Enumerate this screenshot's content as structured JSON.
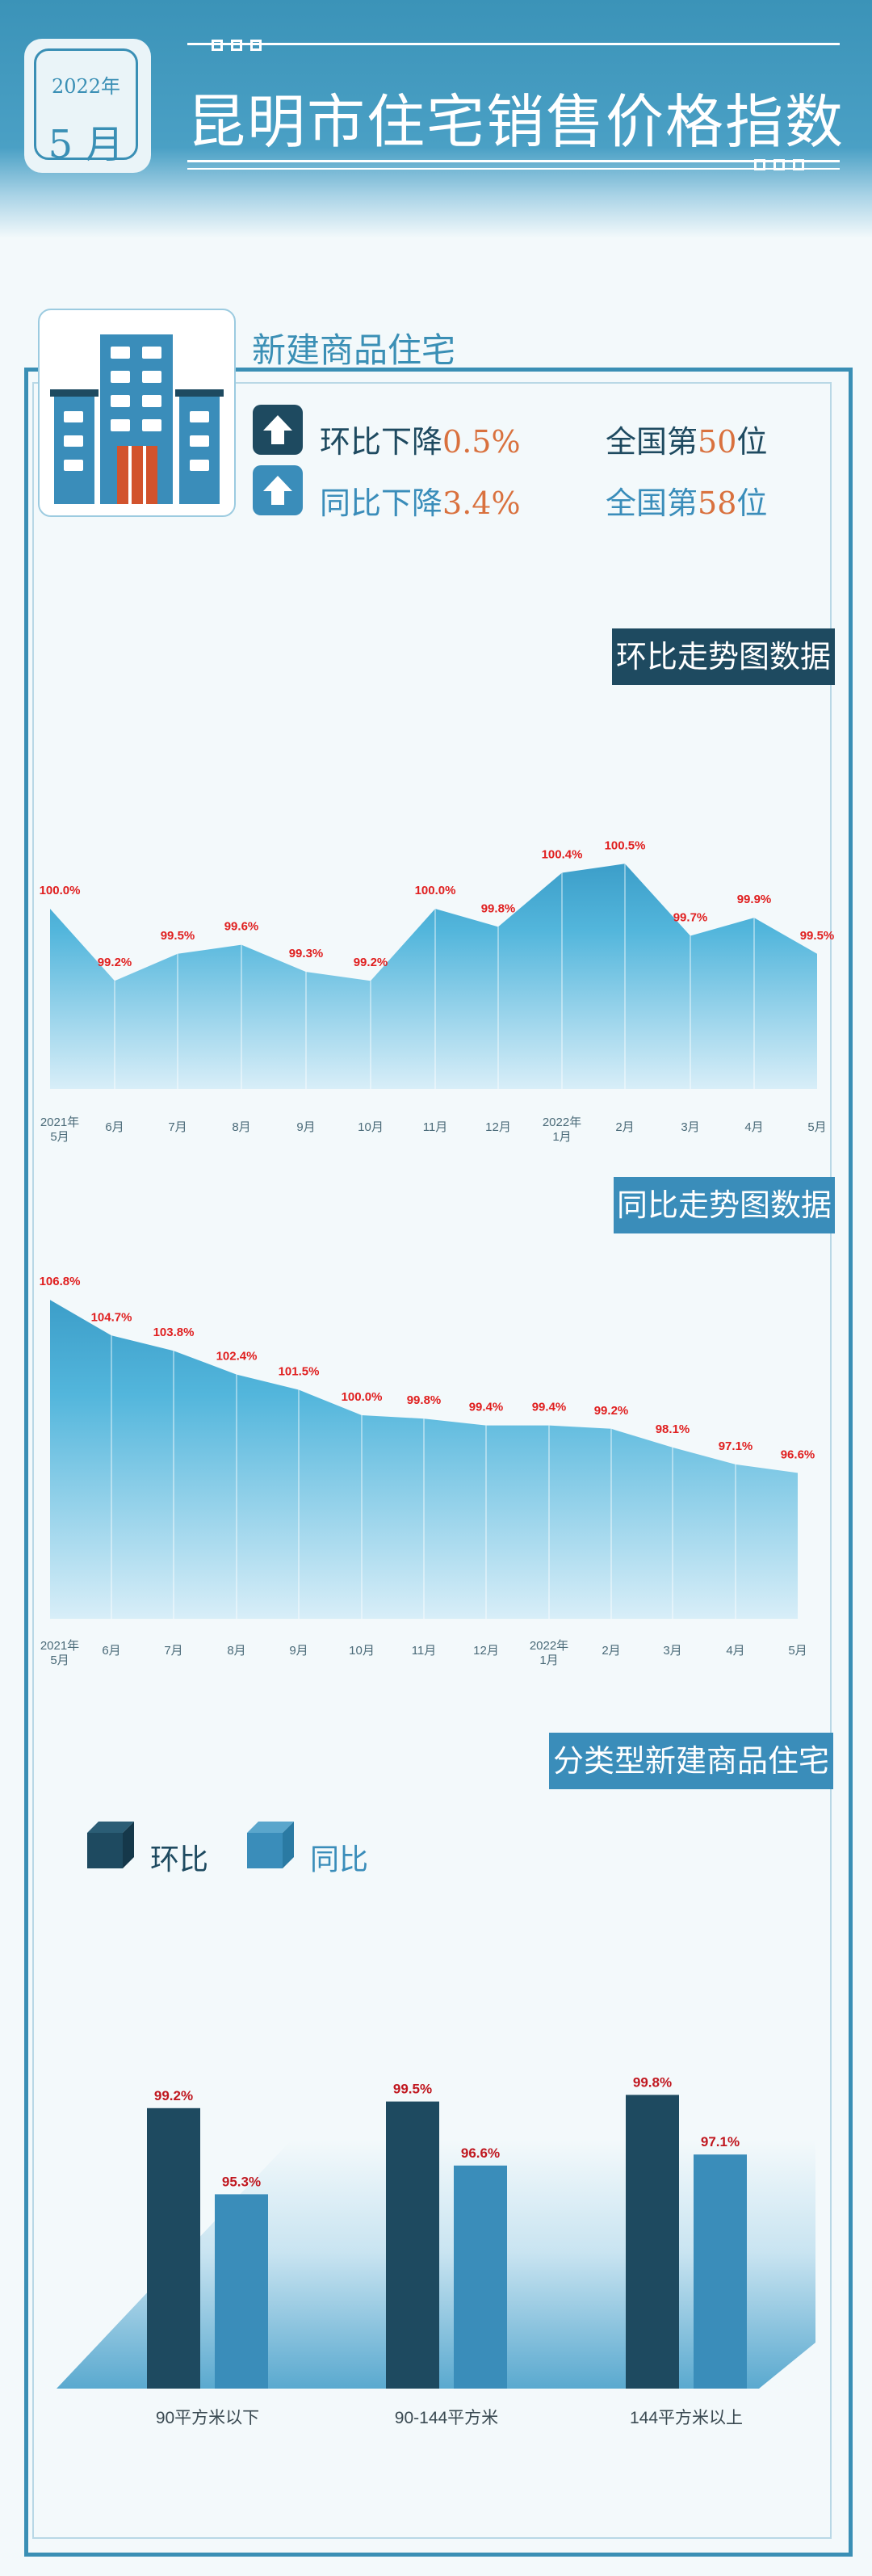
{
  "header": {
    "year": "2022年",
    "month": "5 月",
    "title": "昆明市住宅销售价格指数"
  },
  "section": {
    "title": "新建商品住宅",
    "stat1": {
      "prefix": "环比下降",
      "value": "0.5%",
      "rank_prefix": "全国第",
      "rank": "50",
      "rank_suffix": "位"
    },
    "stat2": {
      "prefix": "同比下降",
      "value": "3.4%",
      "rank_prefix": "全国第",
      "rank": "58",
      "rank_suffix": "位"
    }
  },
  "labels": {
    "mom_trend": "环比走势图数据",
    "yoy_trend": "同比走势图数据",
    "by_type": "分类型新建商品住宅"
  },
  "legend": {
    "mom": "环比",
    "yoy": "同比"
  },
  "colors": {
    "accent": "#3a8fb5",
    "dark": "#1e4a60",
    "mid": "#3a8dba",
    "value_red": "#e01f1f",
    "orange": "#d9713e"
  },
  "chart_data": [
    {
      "type": "area",
      "title": "环比走势图数据",
      "categories": [
        [
          "2021年",
          "5月"
        ],
        [
          "6月"
        ],
        [
          "7月"
        ],
        [
          "8月"
        ],
        [
          "9月"
        ],
        [
          "10月"
        ],
        [
          "11月"
        ],
        [
          "12月"
        ],
        [
          "2022年",
          "1月"
        ],
        [
          "2月"
        ],
        [
          "3月"
        ],
        [
          "4月"
        ],
        [
          "5月"
        ]
      ],
      "values": [
        100.0,
        99.2,
        99.5,
        99.6,
        99.3,
        99.2,
        100.0,
        99.8,
        100.4,
        100.5,
        99.7,
        99.9,
        99.5
      ],
      "value_labels": [
        "100.0%",
        "99.2%",
        "99.5%",
        "99.6%",
        "99.3%",
        "99.2%",
        "100.0%",
        "99.8%",
        "100.4%",
        "100.5%",
        "99.7%",
        "99.9%",
        "99.5%"
      ],
      "ylim": [
        98.0,
        100.7
      ]
    },
    {
      "type": "area",
      "title": "同比走势图数据",
      "categories": [
        [
          "2021年",
          "5月"
        ],
        [
          "6月"
        ],
        [
          "7月"
        ],
        [
          "8月"
        ],
        [
          "9月"
        ],
        [
          "10月"
        ],
        [
          "11月"
        ],
        [
          "12月"
        ],
        [
          "2022年",
          "1月"
        ],
        [
          "2月"
        ],
        [
          "3月"
        ],
        [
          "4月"
        ],
        [
          "5月"
        ]
      ],
      "values": [
        106.8,
        104.7,
        103.8,
        102.4,
        101.5,
        100.0,
        99.8,
        99.4,
        99.4,
        99.2,
        98.1,
        97.1,
        96.6
      ],
      "value_labels": [
        "106.8%",
        "104.7%",
        "103.8%",
        "102.4%",
        "101.5%",
        "100.0%",
        "99.8%",
        "99.4%",
        "99.4%",
        "99.2%",
        "98.1%",
        "97.1%",
        "96.6%"
      ],
      "ylim": [
        88.0,
        107.0
      ]
    },
    {
      "type": "bar",
      "title": "分类型新建商品住宅",
      "categories": [
        "90平方米以下",
        "90-144平方米",
        "144平方米以上"
      ],
      "series": [
        {
          "name": "环比",
          "values": [
            99.2,
            99.5,
            99.8
          ],
          "labels": [
            "99.2%",
            "99.5%",
            "99.8%"
          ]
        },
        {
          "name": "同比",
          "values": [
            95.3,
            96.6,
            97.1
          ],
          "labels": [
            "95.3%",
            "96.6%",
            "97.1%"
          ]
        }
      ],
      "ylim": [
        86.5,
        100.4
      ]
    }
  ]
}
